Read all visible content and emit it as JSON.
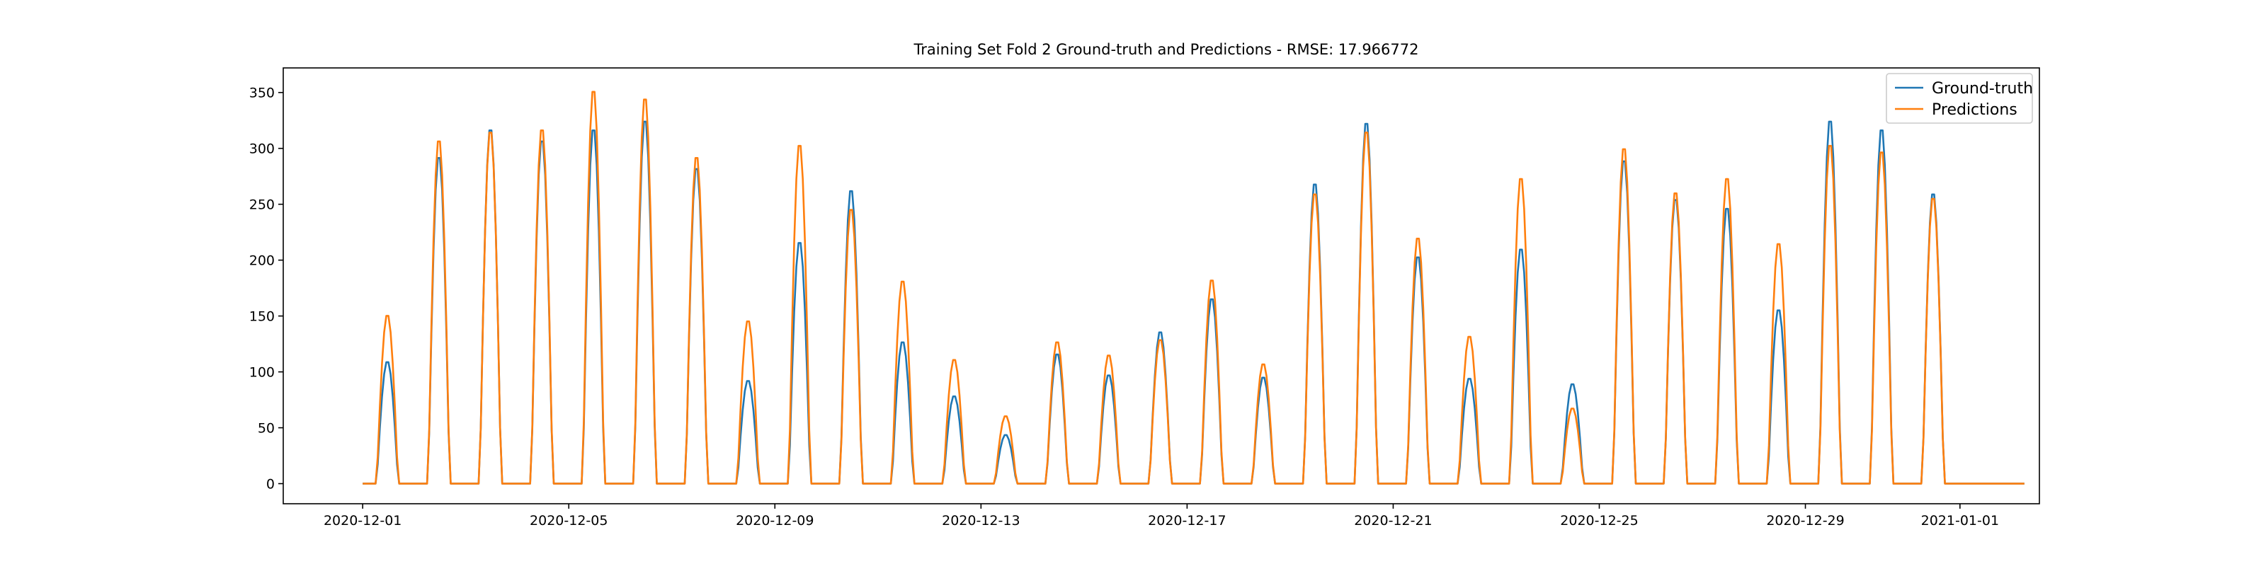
{
  "chart_data": {
    "type": "line",
    "title": "Training Set Fold 2 Ground-truth and Predictions - RMSE: 17.966772",
    "xlabel": "",
    "ylabel": "",
    "x_unit": "date",
    "x_range": [
      "2020-11-29T11:00",
      "2021-01-02T13:00"
    ],
    "ylim": [
      -18,
      372
    ],
    "xticks": [
      "2020-12-01",
      "2020-12-05",
      "2020-12-09",
      "2020-12-13",
      "2020-12-17",
      "2020-12-21",
      "2020-12-25",
      "2020-12-29",
      "2021-01-01"
    ],
    "yticks": [
      0,
      50,
      100,
      150,
      200,
      250,
      300,
      350
    ],
    "grid": false,
    "legend": "upper right",
    "series_names": [
      "Ground-truth",
      "Predictions"
    ],
    "colors": {
      "Ground-truth": "#1f77b4",
      "Predictions": "#ff7f0e"
    },
    "sampling": "hourly",
    "data_start": "2020-12-01T00:00",
    "data_end": "2021-01-02T06:00",
    "daylight_peaks": [
      {
        "date": "2020-12-01",
        "ground_truth": 110,
        "predictions": 152
      },
      {
        "date": "2020-12-02",
        "ground_truth": 295,
        "predictions": 310
      },
      {
        "date": "2020-12-03",
        "ground_truth": 320,
        "predictions": 318
      },
      {
        "date": "2020-12-04",
        "ground_truth": 310,
        "predictions": 320
      },
      {
        "date": "2020-12-05",
        "ground_truth": 320,
        "predictions": 355
      },
      {
        "date": "2020-12-06",
        "ground_truth": 328,
        "predictions": 348
      },
      {
        "date": "2020-12-07",
        "ground_truth": 285,
        "predictions": 295
      },
      {
        "date": "2020-12-08",
        "ground_truth": 93,
        "predictions": 147
      },
      {
        "date": "2020-12-09",
        "ground_truth": 218,
        "predictions": 306
      },
      {
        "date": "2020-12-10",
        "ground_truth": 265,
        "predictions": 248
      },
      {
        "date": "2020-12-11",
        "ground_truth": 128,
        "predictions": 183
      },
      {
        "date": "2020-12-12",
        "ground_truth": 79,
        "predictions": 112
      },
      {
        "date": "2020-12-13",
        "ground_truth": 44,
        "predictions": 61
      },
      {
        "date": "2020-12-14",
        "ground_truth": 117,
        "predictions": 128
      },
      {
        "date": "2020-12-15",
        "ground_truth": 98,
        "predictions": 116
      },
      {
        "date": "2020-12-16",
        "ground_truth": 137,
        "predictions": 130
      },
      {
        "date": "2020-12-17",
        "ground_truth": 167,
        "predictions": 184
      },
      {
        "date": "2020-12-18",
        "ground_truth": 96,
        "predictions": 108
      },
      {
        "date": "2020-12-19",
        "ground_truth": 271,
        "predictions": 262
      },
      {
        "date": "2020-12-20",
        "ground_truth": 326,
        "predictions": 318
      },
      {
        "date": "2020-12-21",
        "ground_truth": 205,
        "predictions": 222
      },
      {
        "date": "2020-12-22",
        "ground_truth": 95,
        "predictions": 133
      },
      {
        "date": "2020-12-23",
        "ground_truth": 212,
        "predictions": 276
      },
      {
        "date": "2020-12-24",
        "ground_truth": 90,
        "predictions": 68
      },
      {
        "date": "2020-12-25",
        "ground_truth": 292,
        "predictions": 303
      },
      {
        "date": "2020-12-26",
        "ground_truth": 257,
        "predictions": 263
      },
      {
        "date": "2020-12-27",
        "ground_truth": 249,
        "predictions": 276
      },
      {
        "date": "2020-12-28",
        "ground_truth": 157,
        "predictions": 217
      },
      {
        "date": "2020-12-29",
        "ground_truth": 328,
        "predictions": 306
      },
      {
        "date": "2020-12-30",
        "ground_truth": 320,
        "predictions": 300
      },
      {
        "date": "2020-12-31",
        "ground_truth": 262,
        "predictions": 258
      }
    ]
  }
}
